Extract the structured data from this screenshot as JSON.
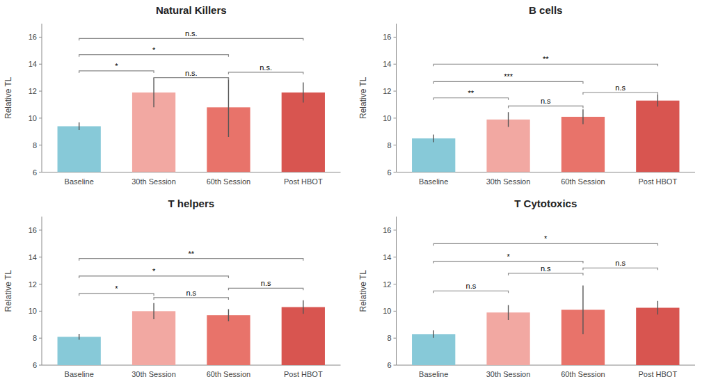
{
  "chart_data": [
    {
      "type": "bar",
      "title": "Natural Killers",
      "categories": [
        "Baseline",
        "30th Session",
        "60th Session",
        "Post HBOT"
      ],
      "values": [
        9.4,
        11.9,
        10.8,
        11.9
      ],
      "errors": [
        0.28,
        1.1,
        2.2,
        0.75
      ],
      "colors": [
        "#87C9D8",
        "#F2A8A2",
        "#E8736A",
        "#D85550"
      ],
      "brackets": [
        {
          "left": 0,
          "right": 1,
          "height": 13.5,
          "label": "*"
        },
        {
          "left": 0,
          "right": 2,
          "height": 14.7,
          "label": "*"
        },
        {
          "left": 0,
          "right": 3,
          "height": 15.9,
          "label": "n.s."
        },
        {
          "left": 1,
          "right": 2,
          "height": 13.0,
          "label": "n.s."
        },
        {
          "left": 2,
          "right": 3,
          "height": 13.4,
          "label": "n.s."
        }
      ],
      "ylabel": "Relative TL",
      "ylim": [
        6.0,
        17.0
      ],
      "yticks": [
        6,
        8,
        10,
        12,
        14,
        16
      ],
      "grid": false
    },
    {
      "type": "bar",
      "title": "B cells",
      "categories": [
        "Baseline",
        "30th Session",
        "60th Session",
        "Post HBOT"
      ],
      "values": [
        8.5,
        9.9,
        10.1,
        11.3
      ],
      "errors": [
        0.28,
        0.55,
        0.55,
        0.45
      ],
      "colors": [
        "#87C9D8",
        "#F2A8A2",
        "#E8736A",
        "#D85550"
      ],
      "brackets": [
        {
          "left": 0,
          "right": 1,
          "height": 11.5,
          "label": "**"
        },
        {
          "left": 0,
          "right": 2,
          "height": 12.7,
          "label": "***"
        },
        {
          "left": 0,
          "right": 3,
          "height": 14.0,
          "label": "**"
        },
        {
          "left": 1,
          "right": 2,
          "height": 10.9,
          "label": "n.s"
        },
        {
          "left": 2,
          "right": 3,
          "height": 11.9,
          "label": "n.s"
        }
      ],
      "ylabel": "Relative TL",
      "ylim": [
        6.0,
        17.0
      ],
      "yticks": [
        6,
        8,
        10,
        12,
        14,
        16
      ],
      "grid": false
    },
    {
      "type": "bar",
      "title": "T helpers",
      "categories": [
        "Baseline",
        "30th Session",
        "60th Session",
        "Post HBOT"
      ],
      "values": [
        8.1,
        10.0,
        9.7,
        10.3
      ],
      "errors": [
        0.22,
        0.6,
        0.45,
        0.5
      ],
      "colors": [
        "#87C9D8",
        "#F2A8A2",
        "#E8736A",
        "#D85550"
      ],
      "brackets": [
        {
          "left": 0,
          "right": 1,
          "height": 11.3,
          "label": "*"
        },
        {
          "left": 0,
          "right": 2,
          "height": 12.6,
          "label": "*"
        },
        {
          "left": 0,
          "right": 3,
          "height": 13.9,
          "label": "**"
        },
        {
          "left": 1,
          "right": 2,
          "height": 11.0,
          "label": "n.s"
        },
        {
          "left": 2,
          "right": 3,
          "height": 11.7,
          "label": "n.s"
        }
      ],
      "ylabel": "Relative TL",
      "ylim": [
        6.0,
        17.0
      ],
      "yticks": [
        6,
        8,
        10,
        12,
        14,
        16
      ],
      "grid": false
    },
    {
      "type": "bar",
      "title": "T Cytotoxics",
      "categories": [
        "Baseline",
        "30th Session",
        "60th Session",
        "Post HBOT"
      ],
      "values": [
        8.3,
        9.9,
        10.1,
        10.25
      ],
      "errors": [
        0.28,
        0.55,
        1.8,
        0.5
      ],
      "colors": [
        "#87C9D8",
        "#F2A8A2",
        "#E8736A",
        "#D85550"
      ],
      "brackets": [
        {
          "left": 0,
          "right": 1,
          "height": 11.5,
          "label": "n.s"
        },
        {
          "left": 0,
          "right": 2,
          "height": 13.7,
          "label": "*"
        },
        {
          "left": 0,
          "right": 3,
          "height": 15.0,
          "label": "*"
        },
        {
          "left": 1,
          "right": 2,
          "height": 12.8,
          "label": "n.s"
        },
        {
          "left": 2,
          "right": 3,
          "height": 13.2,
          "label": "n.s"
        }
      ],
      "ylabel": "Relative TL",
      "ylim": [
        6.0,
        17.0
      ],
      "yticks": [
        6,
        8,
        10,
        12,
        14,
        16
      ],
      "grid": false
    }
  ]
}
